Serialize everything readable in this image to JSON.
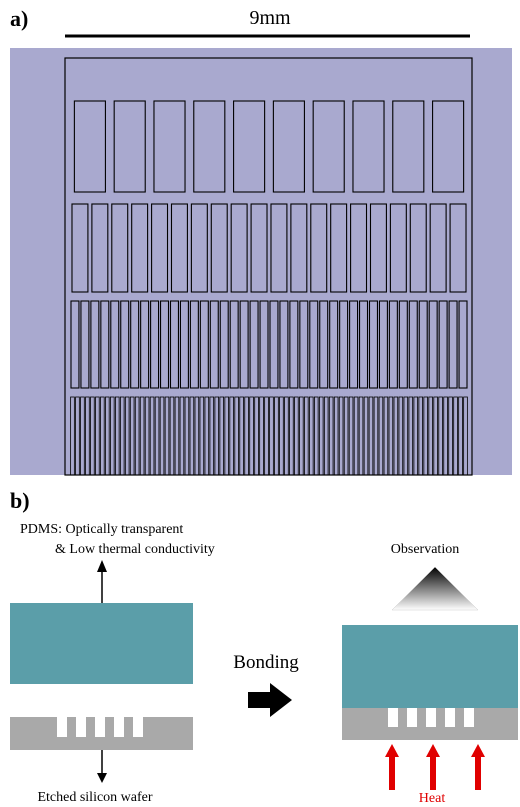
{
  "panel_a": {
    "label": "a)",
    "scale_bar": "9mm"
  },
  "panel_b": {
    "label": "b)",
    "pdms_line1": "PDMS: Optically transparent",
    "pdms_line2": "& Low thermal conductivity",
    "observation": "Observation",
    "bonding": "Bonding",
    "wafer": "Etched silicon wafer",
    "heat": "Heat"
  }
}
